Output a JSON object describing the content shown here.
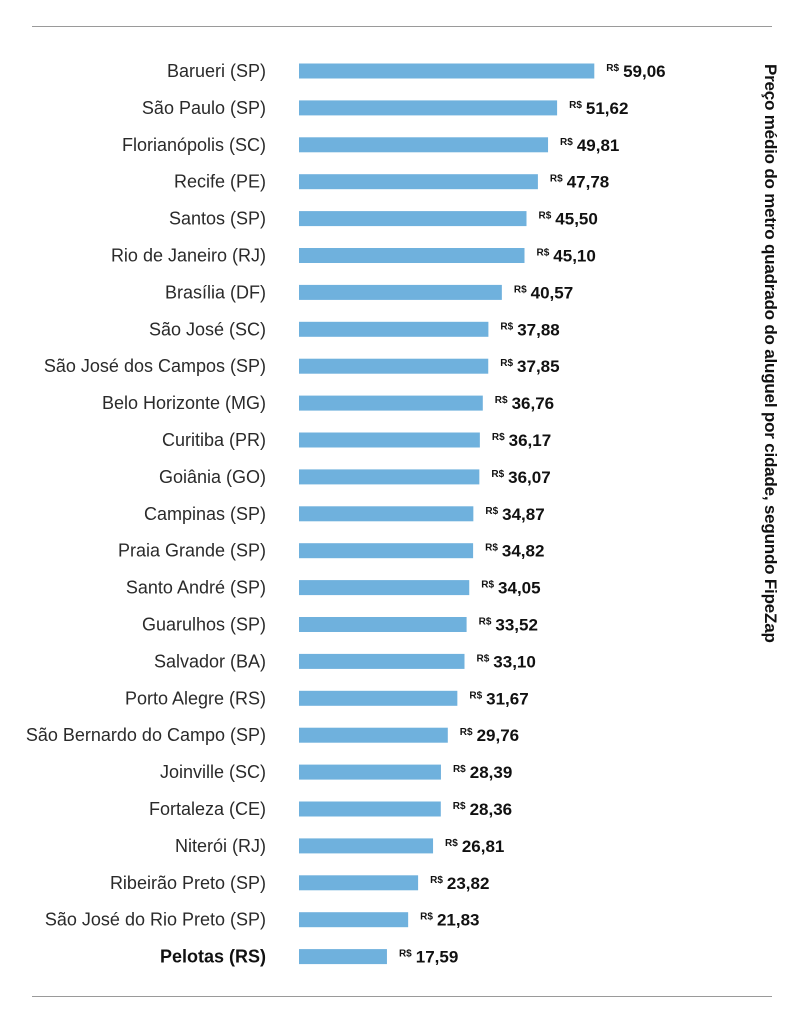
{
  "chart_data": {
    "type": "bar",
    "orientation": "horizontal",
    "ylabel": "Preço médio do metro quadrado do aluguel por cidade, segundo FipeZap",
    "value_prefix": "R$",
    "bar_color": "#6fb1dd",
    "highlight_category": "Pelotas (RS)",
    "categories": [
      "Barueri (SP)",
      "São Paulo (SP)",
      "Florianópolis (SC)",
      "Recife (PE)",
      "Santos (SP)",
      "Rio de Janeiro (RJ)",
      "Brasília (DF)",
      "São José (SC)",
      "São José dos Campos (SP)",
      "Belo Horizonte (MG)",
      "Curitiba (PR)",
      "Goiânia (GO)",
      "Campinas (SP)",
      "Praia Grande (SP)",
      "Santo André (SP)",
      "Guarulhos (SP)",
      "Salvador (BA)",
      "Porto Alegre (RS)",
      "São Bernardo do Campo (SP)",
      "Joinville (SC)",
      "Fortaleza (CE)",
      "Niterói (RJ)",
      "Ribeirão Preto (SP)",
      "São José do Rio Preto (SP)",
      "Pelotas (RS)"
    ],
    "values": [
      59.06,
      51.62,
      49.81,
      47.78,
      45.5,
      45.1,
      40.57,
      37.88,
      37.85,
      36.76,
      36.17,
      36.07,
      34.87,
      34.82,
      34.05,
      33.52,
      33.1,
      31.67,
      29.76,
      28.39,
      28.36,
      26.81,
      23.82,
      21.83,
      17.59
    ],
    "value_labels": [
      "59,06",
      "51,62",
      "49,81",
      "47,78",
      "45,50",
      "45,10",
      "40,57",
      "37,88",
      "37,85",
      "36,76",
      "36,17",
      "36,07",
      "34,87",
      "34,82",
      "34,05",
      "33,52",
      "33,10",
      "31,67",
      "29,76",
      "28,39",
      "28,36",
      "26,81",
      "23,82",
      "21,83",
      "17,59"
    ]
  }
}
